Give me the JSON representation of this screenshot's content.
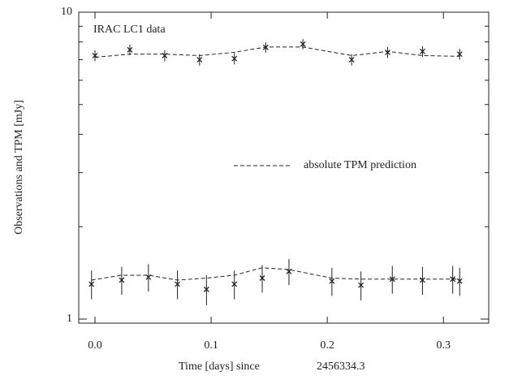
{
  "chart_data": {
    "type": "scatter",
    "annotation": "IRAC LC1 data",
    "xlabel": [
      "Time [days] since",
      "2456334.3"
    ],
    "ylabel": "Observations and TPM [mJy]",
    "xlim": [
      -0.014,
      0.339
    ],
    "ylim": [
      0.97,
      10
    ],
    "log_y": true,
    "xticks": [
      {
        "value": 0,
        "label": "0.0"
      },
      0.1,
      0.2,
      0.3
    ],
    "yticks": [
      1,
      10
    ],
    "yminorticks": [
      2,
      3,
      4,
      5,
      6,
      7,
      8,
      9
    ],
    "legend": "center-right",
    "series": [
      {
        "style": "cross",
        "color": "#222",
        "x": [
          0.0,
          0.03,
          0.06,
          0.09,
          0.12,
          0.147,
          0.179,
          0.221,
          0.252,
          0.282,
          0.314
        ],
        "values": [
          7.22,
          7.54,
          7.22,
          7.0,
          7.06,
          7.68,
          7.87,
          7.0,
          7.4,
          7.45,
          7.3
        ],
        "errors": [
          0.3,
          0.3,
          0.3,
          0.3,
          0.3,
          0.3,
          0.3,
          0.3,
          0.3,
          0.3,
          0.3
        ]
      },
      {
        "style": "cross",
        "color": "#222",
        "x": [
          -0.003,
          0.023,
          0.046,
          0.071,
          0.096,
          0.12,
          0.144,
          0.167,
          0.204,
          0.229,
          0.256,
          0.282,
          0.308,
          0.314
        ],
        "values": [
          1.3,
          1.34,
          1.37,
          1.3,
          1.25,
          1.3,
          1.36,
          1.43,
          1.33,
          1.29,
          1.35,
          1.34,
          1.35,
          1.33
        ],
        "errors": [
          0.14,
          0.14,
          0.14,
          0.14,
          0.14,
          0.14,
          0.14,
          0.14,
          0.14,
          0.14,
          0.14,
          0.14,
          0.14,
          0.14
        ]
      },
      {
        "name": "absolute TPM prediction",
        "style": "dashed",
        "color": "#222",
        "x": [
          0.0,
          0.03,
          0.06,
          0.09,
          0.12,
          0.147,
          0.179,
          0.221,
          0.252,
          0.282,
          0.314
        ],
        "values": [
          7.13,
          7.3,
          7.3,
          7.22,
          7.4,
          7.7,
          7.7,
          7.22,
          7.45,
          7.22,
          7.18
        ]
      },
      {
        "style": "dashed",
        "color": "#222",
        "x": [
          -0.003,
          0.023,
          0.046,
          0.071,
          0.096,
          0.12,
          0.144,
          0.167,
          0.204,
          0.229,
          0.256,
          0.282,
          0.308,
          0.314
        ],
        "values": [
          1.34,
          1.39,
          1.39,
          1.34,
          1.36,
          1.39,
          1.47,
          1.45,
          1.36,
          1.35,
          1.35,
          1.35,
          1.35,
          1.35
        ]
      }
    ]
  }
}
